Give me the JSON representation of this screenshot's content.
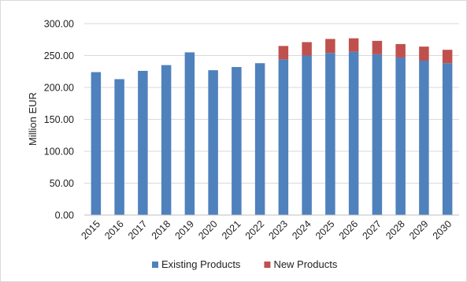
{
  "chart_data": {
    "type": "bar",
    "stacked": true,
    "categories": [
      "2015",
      "2016",
      "2017",
      "2018",
      "2019",
      "2020",
      "2021",
      "2022",
      "2023",
      "2024",
      "2025",
      "2026",
      "2027",
      "2028",
      "2029",
      "2030"
    ],
    "series": [
      {
        "name": "Existing Products",
        "color": "#4f81bd",
        "values": [
          224,
          213,
          226,
          235,
          255,
          227,
          232,
          238,
          244,
          250,
          254,
          256,
          252,
          247,
          242,
          238
        ]
      },
      {
        "name": "New Products",
        "color": "#c0504d",
        "values": [
          0,
          0,
          0,
          0,
          0,
          0,
          0,
          0,
          21,
          21,
          22,
          21,
          21,
          21,
          22,
          21
        ]
      }
    ],
    "title": "",
    "xlabel": "",
    "ylabel": "Million EUR",
    "ylim": [
      0,
      300
    ],
    "yticks": [
      "0.00",
      "50.00",
      "100.00",
      "150.00",
      "200.00",
      "250.00",
      "300.00"
    ],
    "grid": true,
    "legend_position": "bottom"
  }
}
